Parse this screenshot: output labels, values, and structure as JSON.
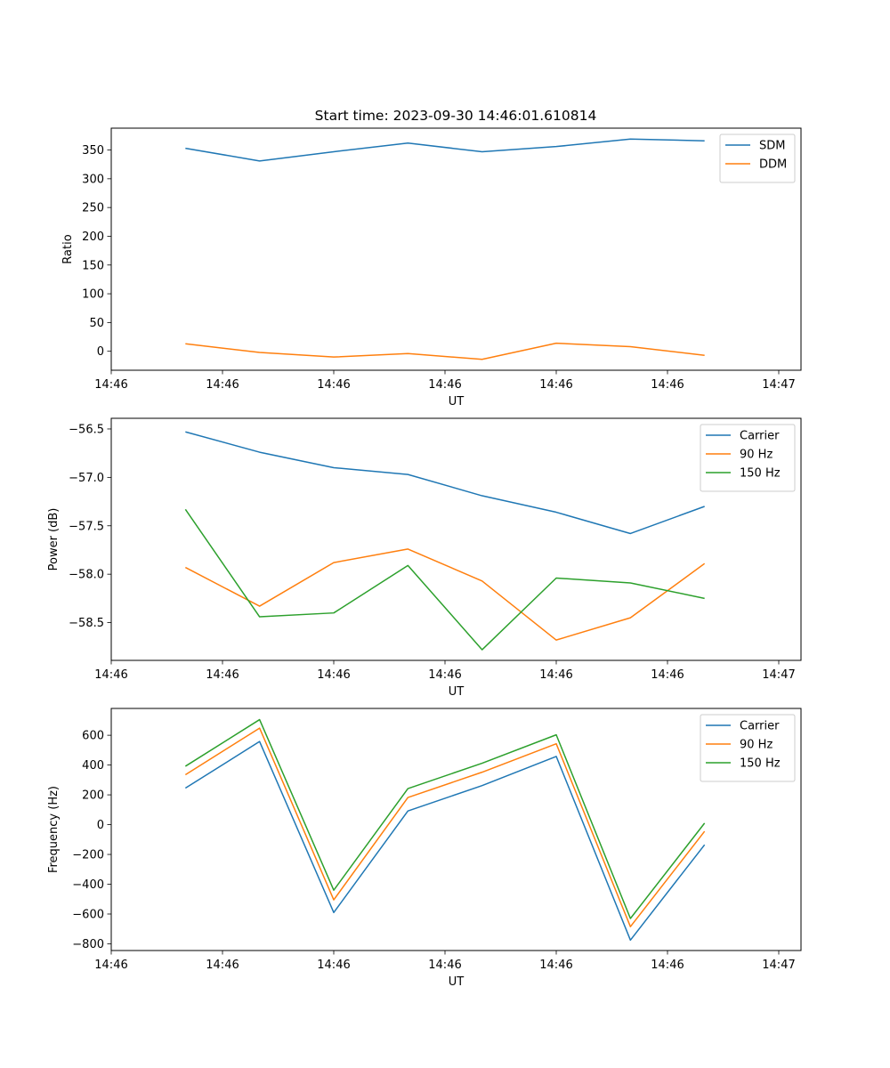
{
  "figure_title": "Start time: 2023-09-30 14:46:01.610814",
  "colors": {
    "blue": "#1f77b4",
    "orange": "#ff7f0e",
    "green": "#2ca02c"
  },
  "chart_data": [
    {
      "type": "line",
      "title": "Start time: 2023-09-30 14:46:01.610814",
      "xlabel": "UT",
      "ylabel": "Ratio",
      "x": [
        1,
        2,
        3,
        4,
        5,
        6,
        7,
        8
      ],
      "xlim": [
        0,
        9.3
      ],
      "x_ticks": [
        0,
        1.5,
        3,
        4.5,
        6,
        7.5,
        9
      ],
      "x_tick_labels": [
        "14:46",
        "14:46",
        "14:46",
        "14:46",
        "14:46",
        "14:46",
        "14:46"
      ],
      "x_tick_last_label": "14:47",
      "ylim": [
        -33,
        388
      ],
      "y_ticks": [
        0,
        50,
        100,
        150,
        200,
        250,
        300,
        350
      ],
      "legend_position": "top-right",
      "series": [
        {
          "name": "SDM",
          "color": "#1f77b4",
          "values": [
            353,
            331,
            347,
            362,
            347,
            356,
            369,
            366
          ]
        },
        {
          "name": "DDM",
          "color": "#ff7f0e",
          "values": [
            13,
            -2,
            -10,
            -4,
            -14,
            14,
            8,
            -7
          ]
        }
      ]
    },
    {
      "type": "line",
      "title": "",
      "xlabel": "UT",
      "ylabel": "Power (dB)",
      "x": [
        1,
        2,
        3,
        4,
        5,
        6,
        7,
        8
      ],
      "xlim": [
        0,
        9.3
      ],
      "x_ticks": [
        0,
        1.5,
        3,
        4.5,
        6,
        7.5,
        9
      ],
      "x_tick_labels": [
        "14:46",
        "14:46",
        "14:46",
        "14:46",
        "14:46",
        "14:46",
        "14:46"
      ],
      "x_tick_last_label": "14:47",
      "ylim": [
        -58.89,
        -56.39
      ],
      "y_ticks": [
        -58.5,
        -58.0,
        -57.5,
        -57.0,
        -56.5
      ],
      "y_tick_labels": [
        "−58.5",
        "−58.0",
        "−57.5",
        "−57.0",
        "−56.5"
      ],
      "legend_position": "top-right",
      "series": [
        {
          "name": "Carrier",
          "color": "#1f77b4",
          "values": [
            -56.53,
            -56.74,
            -56.9,
            -56.97,
            -57.19,
            -57.36,
            -57.58,
            -57.3
          ]
        },
        {
          "name": "90 Hz",
          "color": "#ff7f0e",
          "values": [
            -57.93,
            -58.33,
            -57.88,
            -57.74,
            -58.07,
            -58.68,
            -58.45,
            -57.89
          ]
        },
        {
          "name": "150 Hz",
          "color": "#2ca02c",
          "values": [
            -57.33,
            -58.44,
            -58.4,
            -57.91,
            -58.78,
            -58.04,
            -58.09,
            -58.25
          ]
        }
      ]
    },
    {
      "type": "line",
      "title": "",
      "xlabel": "UT",
      "ylabel": "Frequency (Hz)",
      "x": [
        1,
        2,
        3,
        4,
        5,
        6,
        7,
        8
      ],
      "xlim": [
        0,
        9.3
      ],
      "x_ticks": [
        0,
        1.5,
        3,
        4.5,
        6,
        7.5,
        9
      ],
      "x_tick_labels": [
        "14:46",
        "14:46",
        "14:46",
        "14:46",
        "14:46",
        "14:46",
        "14:46"
      ],
      "x_tick_last_label": "14:47",
      "ylim": [
        -845,
        780
      ],
      "y_ticks": [
        -800,
        -600,
        -400,
        -200,
        0,
        200,
        400,
        600
      ],
      "y_tick_labels": [
        "−800",
        "−600",
        "−400",
        "−200",
        "0",
        "200",
        "400",
        "600"
      ],
      "legend_position": "top-right",
      "series": [
        {
          "name": "Carrier",
          "color": "#1f77b4",
          "values": [
            245,
            558,
            -590,
            92,
            262,
            458,
            -775,
            -135
          ]
        },
        {
          "name": "90 Hz",
          "color": "#ff7f0e",
          "values": [
            335,
            648,
            -505,
            182,
            352,
            543,
            -685,
            -45
          ]
        },
        {
          "name": "150 Hz",
          "color": "#2ca02c",
          "values": [
            392,
            705,
            -440,
            242,
            412,
            603,
            -630,
            10
          ]
        }
      ]
    }
  ]
}
